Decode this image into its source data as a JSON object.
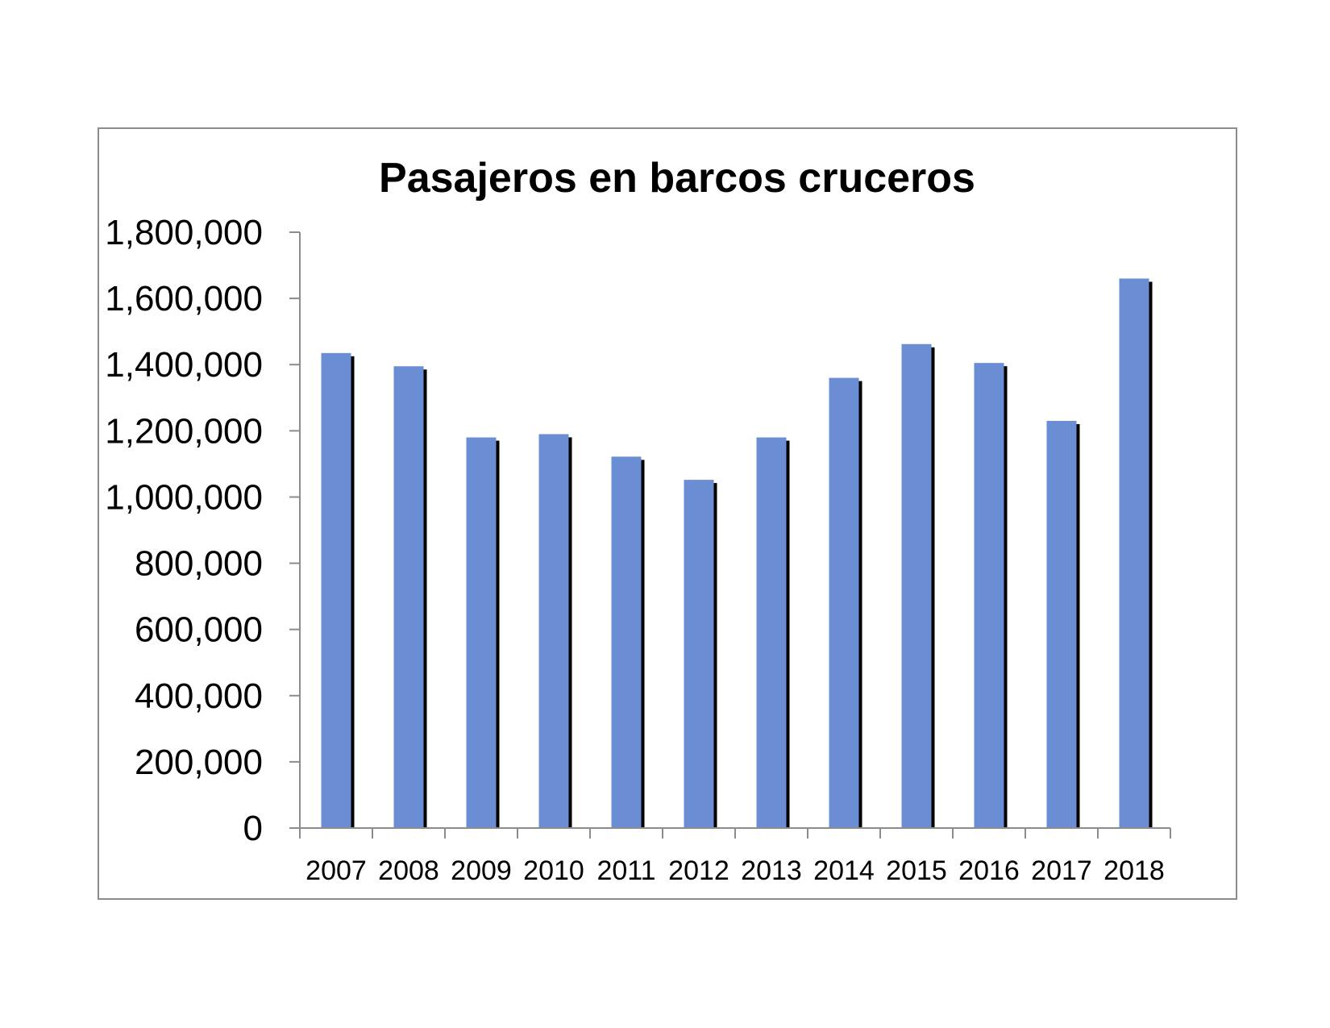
{
  "chart_data": {
    "type": "bar",
    "title": "Pasajeros en barcos cruceros",
    "xlabel": "",
    "ylabel": "",
    "categories": [
      "2007",
      "2008",
      "2009",
      "2010",
      "2011",
      "2012",
      "2013",
      "2014",
      "2015",
      "2016",
      "2017",
      "2018"
    ],
    "values": [
      1435000,
      1395000,
      1180000,
      1190000,
      1122000,
      1052000,
      1180000,
      1360000,
      1462000,
      1405000,
      1230000,
      1660000
    ],
    "ylim": [
      0,
      1800000
    ],
    "yticks": [
      0,
      200000,
      400000,
      600000,
      800000,
      1000000,
      1200000,
      1400000,
      1600000,
      1800000
    ],
    "ytick_labels": [
      "0",
      "200,000",
      "400,000",
      "600,000",
      "800,000",
      "1,000,000",
      "1,200,000",
      "1,400,000",
      "1,600,000",
      "1,800,000"
    ],
    "grid": false,
    "legend": "none",
    "colors": {
      "bar": "#6a8dd3",
      "bar_shadow": "#000000",
      "axis": "#8c8c8c",
      "frame": "#8c8c8c"
    }
  }
}
